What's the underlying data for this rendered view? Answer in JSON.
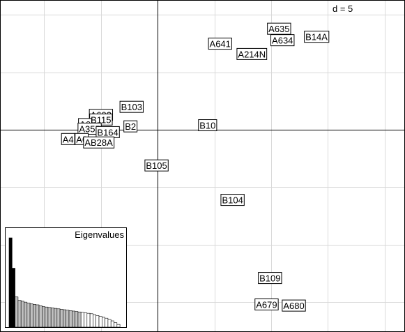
{
  "chart_data": {
    "type": "scatter",
    "scale_label": "d = 5",
    "grid": true,
    "grid_step": 5,
    "xlim": [
      -13.9,
      21.8
    ],
    "ylim": [
      -17.6,
      11.3
    ],
    "points": [
      {
        "label": "A635",
        "x": 10.7,
        "y": 8.8
      },
      {
        "label": "A634",
        "x": 11.0,
        "y": 7.8
      },
      {
        "label": "B14A",
        "x": 14.0,
        "y": 8.1
      },
      {
        "label": "A641",
        "x": 5.5,
        "y": 7.5
      },
      {
        "label": "A214N",
        "x": 8.3,
        "y": 6.6
      },
      {
        "label": "B103",
        "x": -2.3,
        "y": 2.0
      },
      {
        "label": "A603",
        "x": -5.0,
        "y": 1.3
      },
      {
        "label": "B115",
        "x": -5.0,
        "y": 0.9
      },
      {
        "label": "A6",
        "x": -6.4,
        "y": 0.5
      },
      {
        "label": "B2",
        "x": -2.4,
        "y": 0.3
      },
      {
        "label": "A355",
        "x": -6.0,
        "y": 0.1
      },
      {
        "label": "B164",
        "x": -4.4,
        "y": -0.2
      },
      {
        "label": "A4",
        "x": -7.9,
        "y": -0.8
      },
      {
        "label": "A6",
        "x": -6.7,
        "y": -0.8
      },
      {
        "label": "AB28A",
        "x": -5.2,
        "y": -1.1
      },
      {
        "label": "B10",
        "x": 4.4,
        "y": 0.4
      },
      {
        "label": "B105",
        "x": -0.1,
        "y": -3.1
      },
      {
        "label": "B104",
        "x": 6.6,
        "y": -6.1
      },
      {
        "label": "B109",
        "x": 9.9,
        "y": -12.9
      },
      {
        "label": "A679",
        "x": 9.6,
        "y": -15.2
      },
      {
        "label": "A680",
        "x": 12.0,
        "y": -15.3
      }
    ],
    "eigenvalues": {
      "title": "Eigenvalues",
      "values": [
        10,
        6.6,
        3.38,
        3.0,
        2.9,
        2.8,
        2.7,
        2.6,
        2.55,
        2.5,
        2.4,
        2.3,
        2.25,
        2.2,
        2.15,
        2.1,
        2.05,
        2.0,
        1.95,
        1.9,
        1.85,
        1.8,
        1.75,
        1.7,
        1.65,
        1.6,
        1.55,
        1.5,
        1.4,
        1.3,
        1.2,
        1.1,
        1.0,
        0.85,
        0.7,
        0.5,
        0.3
      ],
      "black_count": 2,
      "grey_count": 22
    }
  }
}
